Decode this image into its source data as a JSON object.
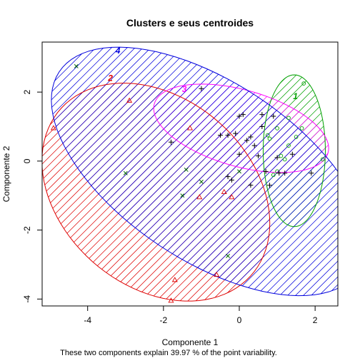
{
  "chart_data": {
    "type": "scatter",
    "title": "Clusters e seus centroides",
    "xlabel": "Componente 1",
    "ylabel": "Componente 2",
    "caption": "These two components explain 39.97 % of the point variability.",
    "xlim": [
      -5.2,
      2.6
    ],
    "ylim": [
      -4.2,
      3.45
    ],
    "x_ticks": [
      -4,
      -2,
      0,
      2
    ],
    "y_ticks": [
      -4,
      -2,
      0,
      2
    ],
    "x_tick_labels": [
      "-4",
      "-2",
      "0",
      "2"
    ],
    "y_tick_labels": [
      "-4",
      "-2",
      "0",
      "2"
    ],
    "clusters": [
      {
        "id": "1",
        "label": "1",
        "color": "#00A000",
        "marker": "circle",
        "ellipse": {
          "cx": 1.45,
          "cy": 0.3,
          "rx": 0.82,
          "ry": 2.2,
          "angle_deg": 0
        },
        "label_pos": [
          1.48,
          1.8
        ],
        "points": [
          [
            1.7,
            2.25
          ],
          [
            1.3,
            1.25
          ],
          [
            1.5,
            0.7
          ],
          [
            1.0,
            0.95
          ],
          [
            0.8,
            0.65
          ],
          [
            1.2,
            0.05
          ],
          [
            0.9,
            -0.4
          ],
          [
            2.2,
            0.05
          ],
          [
            1.65,
            0.95
          ],
          [
            1.1,
            0.15
          ],
          [
            0.75,
            0.75
          ],
          [
            1.0,
            -0.3
          ],
          [
            1.3,
            0.45
          ]
        ]
      },
      {
        "id": "2",
        "label": "2",
        "color": "#DF0000",
        "marker": "triangle",
        "ellipse": {
          "cx": -2.2,
          "cy": -0.9,
          "rx": 2.6,
          "ry": 3.5,
          "angle_deg": 40
        },
        "label_pos": [
          -3.4,
          2.32
        ],
        "points": [
          [
            -2.9,
            1.75
          ],
          [
            -1.3,
            0.95
          ],
          [
            -4.9,
            0.95
          ],
          [
            -1.05,
            -1.05
          ],
          [
            -0.4,
            -0.9
          ],
          [
            -0.2,
            -1.05
          ],
          [
            -1.7,
            -3.45
          ],
          [
            -1.8,
            -4.05
          ],
          [
            -0.6,
            -3.3
          ]
        ]
      },
      {
        "id": "3",
        "label": "3",
        "color": "#FF00FF",
        "marker": "plus",
        "ellipse": {
          "cx": 0.05,
          "cy": 0.95,
          "rx": 2.4,
          "ry": 1.1,
          "angle_deg": -18
        },
        "label_pos": [
          -1.45,
          2.0
        ],
        "points": [
          [
            -1.8,
            0.55
          ],
          [
            -1.0,
            2.1
          ],
          [
            0.0,
            1.3
          ],
          [
            0.6,
            1.35
          ],
          [
            0.9,
            1.3
          ],
          [
            -0.5,
            0.75
          ],
          [
            -0.1,
            0.8
          ],
          [
            -0.3,
            0.75
          ],
          [
            0.2,
            0.6
          ],
          [
            0.0,
            0.2
          ],
          [
            0.5,
            0.15
          ],
          [
            0.3,
            -0.7
          ],
          [
            0.8,
            -0.7
          ],
          [
            1.0,
            0.1
          ],
          [
            0.7,
            -0.3
          ],
          [
            1.05,
            -0.35
          ],
          [
            1.4,
            0.2
          ],
          [
            1.9,
            -0.35
          ],
          [
            -0.3,
            -0.45
          ],
          [
            -0.2,
            -0.55
          ],
          [
            0.1,
            1.35
          ],
          [
            0.3,
            0.7
          ],
          [
            0.4,
            0.45
          ],
          [
            0.6,
            1.0
          ],
          [
            1.2,
            -0.35
          ]
        ]
      },
      {
        "id": "4",
        "label": "4",
        "color": "#0000DD",
        "marker": "cross",
        "ellipse": {
          "cx": -0.8,
          "cy": -0.3,
          "rx": 4.9,
          "ry": 2.5,
          "angle_deg": -38
        },
        "label_pos": [
          -3.2,
          3.12
        ],
        "points": [
          [
            -4.3,
            2.75
          ],
          [
            -3.0,
            -0.35
          ],
          [
            -1.4,
            -0.25
          ],
          [
            -1.0,
            -0.6
          ],
          [
            -1.5,
            -1.0
          ],
          [
            -0.3,
            -2.75
          ],
          [
            0.0,
            -0.3
          ]
        ]
      }
    ]
  }
}
